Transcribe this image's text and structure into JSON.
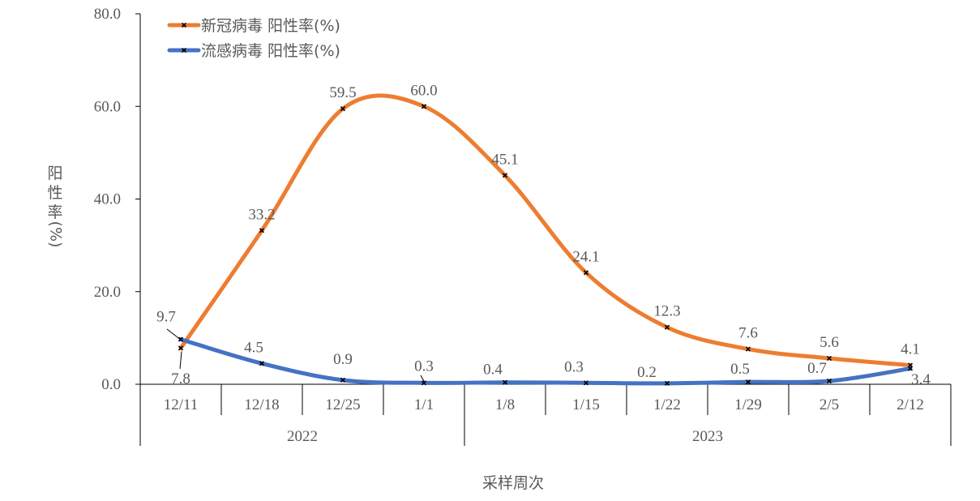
{
  "chart_data": {
    "type": "line",
    "title": "",
    "xlabel": "采样周次",
    "ylabel": "阳性率(%)",
    "ylabel_chars": [
      "阳",
      "性",
      "率",
      "(%)"
    ],
    "ylim": [
      0,
      80
    ],
    "yticks": [
      "0.0",
      "20.0",
      "40.0",
      "60.0",
      "80.0"
    ],
    "ytick_values": [
      0,
      20,
      40,
      60,
      80
    ],
    "categories": [
      "12/11",
      "12/18",
      "12/25",
      "1/1",
      "1/8",
      "1/15",
      "1/22",
      "1/29",
      "2/5",
      "2/12"
    ],
    "groups": [
      {
        "label": "2022",
        "count": 4
      },
      {
        "label": "2023",
        "count": 6
      }
    ],
    "grid": false,
    "legend_position": "top-left",
    "smooth": true,
    "series": [
      {
        "name": "新冠病毒 阳性率(%)",
        "color": "#ED7D31",
        "marker": "x",
        "values": [
          7.8,
          33.2,
          59.5,
          60.0,
          45.1,
          24.1,
          12.3,
          7.6,
          5.6,
          4.1
        ],
        "labels": [
          "7.8",
          "33.2",
          "59.5",
          "60.0",
          "45.1",
          "24.1",
          "12.3",
          "7.6",
          "5.6",
          "4.1"
        ]
      },
      {
        "name": "流感病毒 阳性率(%)",
        "color": "#4472C4",
        "marker": "x",
        "values": [
          9.7,
          4.5,
          0.9,
          0.3,
          0.4,
          0.3,
          0.2,
          0.5,
          0.7,
          3.4
        ],
        "labels": [
          "9.7",
          "4.5",
          "0.9",
          "0.3",
          "0.4",
          "0.3",
          "0.2",
          "0.5",
          "0.7",
          "3.4"
        ]
      }
    ]
  }
}
